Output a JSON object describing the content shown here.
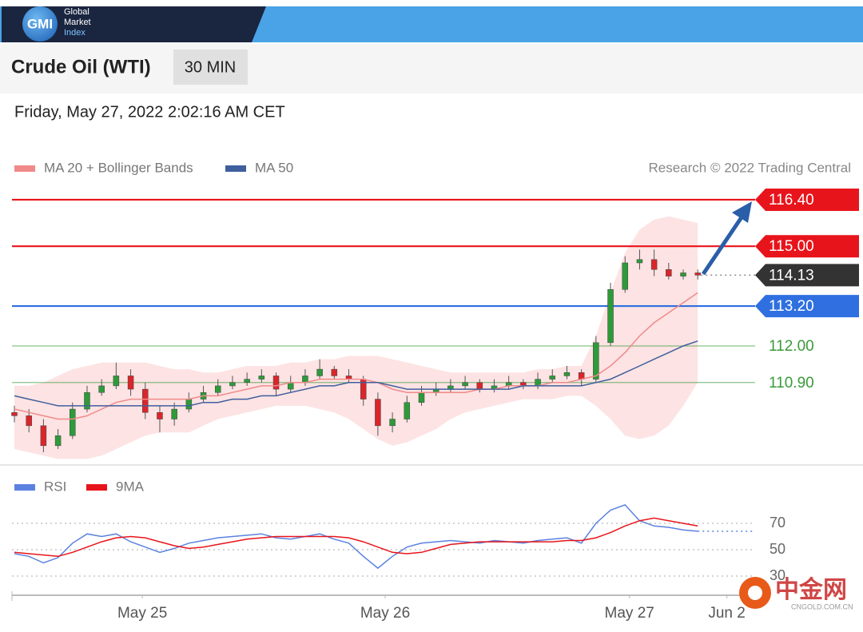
{
  "header": {
    "logo": "GMI",
    "brand": [
      "Global",
      "Market",
      "Index"
    ]
  },
  "instrument": "Crude Oil (WTI)",
  "interval": "30 MIN",
  "timestamp": "Friday, May 27, 2022 2:02:16 AM CET",
  "watermark": {
    "name": "中金网",
    "url": "CNGOLD.COM.CN"
  },
  "chart_data": [
    {
      "type": "candlestick",
      "credit": "Research © 2022 Trading Central",
      "up_color": "#2e9a3a",
      "down_color": "#d9262b",
      "band_color": "#fde3e3",
      "xlim": [
        0,
        51
      ],
      "ylim": [
        108.5,
        117
      ],
      "open": [
        110.0,
        109.9,
        109.6,
        109.0,
        109.3,
        110.1,
        110.6,
        110.8,
        111.1,
        110.7,
        110.0,
        109.8,
        110.1,
        110.4,
        110.6,
        110.8,
        110.9,
        111.0,
        111.1,
        110.7,
        110.9,
        111.1,
        111.3,
        111.1,
        111.0,
        110.4,
        109.6,
        109.8,
        110.3,
        110.6,
        110.7,
        110.8,
        110.9,
        110.7,
        110.8,
        110.9,
        110.8,
        111.0,
        111.1,
        111.2,
        111.0,
        112.1,
        113.7,
        114.5,
        114.6,
        114.3,
        114.1,
        114.2
      ],
      "high": [
        110.2,
        110.1,
        109.8,
        109.5,
        110.3,
        110.8,
        111.0,
        111.5,
        111.3,
        110.9,
        110.2,
        110.3,
        110.6,
        110.8,
        111.0,
        111.1,
        111.2,
        111.3,
        111.2,
        111.1,
        111.3,
        111.6,
        111.4,
        111.3,
        111.1,
        110.6,
        110.0,
        110.5,
        110.8,
        110.9,
        111.0,
        111.1,
        111.0,
        111.0,
        111.1,
        111.0,
        111.2,
        111.3,
        111.4,
        111.3,
        112.3,
        113.9,
        114.7,
        114.9,
        114.9,
        114.5,
        114.3,
        114.3
      ],
      "low": [
        109.7,
        109.4,
        108.8,
        108.9,
        109.2,
        110.0,
        110.5,
        110.7,
        110.5,
        109.8,
        109.4,
        109.6,
        110.0,
        110.3,
        110.5,
        110.7,
        110.8,
        110.9,
        110.5,
        110.6,
        110.8,
        111.0,
        111.0,
        110.9,
        110.2,
        109.3,
        109.4,
        109.7,
        110.2,
        110.5,
        110.6,
        110.7,
        110.6,
        110.6,
        110.7,
        110.7,
        110.7,
        110.9,
        111.0,
        110.8,
        110.9,
        112.0,
        113.6,
        114.3,
        114.1,
        114.0,
        114.0,
        114.0
      ],
      "close": [
        109.9,
        109.6,
        109.0,
        109.3,
        110.1,
        110.6,
        110.8,
        111.1,
        110.7,
        110.0,
        109.8,
        110.1,
        110.4,
        110.6,
        110.8,
        110.9,
        111.0,
        111.1,
        110.7,
        110.9,
        111.1,
        111.3,
        111.1,
        111.0,
        110.4,
        109.6,
        109.8,
        110.3,
        110.6,
        110.7,
        110.8,
        110.9,
        110.7,
        110.8,
        110.9,
        110.8,
        111.0,
        111.1,
        111.2,
        111.0,
        112.1,
        113.7,
        114.5,
        114.6,
        114.3,
        114.1,
        114.2,
        114.13
      ],
      "series": [
        {
          "name": "MA 20 + Bollinger Bands",
          "color": "#f08a8a",
          "values": [
            110.1,
            110.0,
            109.9,
            109.8,
            109.8,
            109.9,
            110.1,
            110.3,
            110.4,
            110.4,
            110.4,
            110.4,
            110.4,
            110.5,
            110.5,
            110.6,
            110.7,
            110.8,
            110.8,
            110.9,
            110.9,
            111.0,
            111.0,
            111.0,
            111.0,
            110.9,
            110.7,
            110.6,
            110.6,
            110.6,
            110.6,
            110.6,
            110.7,
            110.7,
            110.8,
            110.8,
            110.8,
            110.9,
            110.9,
            111.0,
            111.1,
            111.4,
            111.8,
            112.3,
            112.7,
            113.0,
            113.3,
            113.6
          ],
          "upper": [
            110.8,
            110.8,
            110.9,
            111.1,
            111.3,
            111.4,
            111.5,
            111.5,
            111.5,
            111.5,
            111.4,
            111.3,
            111.3,
            111.2,
            111.2,
            111.3,
            111.4,
            111.4,
            111.4,
            111.5,
            111.5,
            111.6,
            111.6,
            111.7,
            111.7,
            111.7,
            111.6,
            111.5,
            111.4,
            111.3,
            111.2,
            111.2,
            111.2,
            111.2,
            111.2,
            111.2,
            111.3,
            111.3,
            111.4,
            111.4,
            112.3,
            113.6,
            114.8,
            115.5,
            115.8,
            115.9,
            115.8,
            115.7
          ],
          "lower": [
            108.9,
            108.8,
            108.7,
            108.6,
            108.6,
            108.6,
            108.7,
            108.9,
            109.1,
            109.3,
            109.4,
            109.4,
            109.4,
            109.6,
            109.8,
            109.9,
            110.0,
            110.1,
            110.2,
            110.2,
            110.2,
            110.1,
            110.0,
            109.8,
            109.5,
            109.2,
            109.0,
            109.1,
            109.3,
            109.5,
            109.8,
            110.0,
            110.1,
            110.2,
            110.3,
            110.4,
            110.4,
            110.4,
            110.5,
            110.5,
            110.2,
            109.8,
            109.3,
            109.2,
            109.3,
            109.6,
            110.2,
            110.9
          ]
        },
        {
          "name": "MA 50",
          "color": "#3f5f9e",
          "values": [
            110.5,
            110.4,
            110.3,
            110.2,
            110.2,
            110.2,
            110.2,
            110.2,
            110.2,
            110.2,
            110.2,
            110.2,
            110.2,
            110.3,
            110.3,
            110.4,
            110.4,
            110.5,
            110.5,
            110.6,
            110.7,
            110.8,
            110.8,
            110.9,
            110.9,
            110.9,
            110.8,
            110.7,
            110.7,
            110.7,
            110.7,
            110.7,
            110.7,
            110.7,
            110.7,
            110.8,
            110.8,
            110.8,
            110.8,
            110.8,
            110.9,
            111.0,
            111.2,
            111.4,
            111.6,
            111.8,
            112.0,
            112.15
          ]
        }
      ],
      "levels": [
        {
          "value": 116.4,
          "label": "116.40",
          "color": "#e8141b",
          "style": "tag",
          "line": "solid"
        },
        {
          "value": 115.0,
          "label": "115.00",
          "color": "#e8141b",
          "style": "tag",
          "line": "solid"
        },
        {
          "value": 114.13,
          "label": "114.13",
          "color": "#333333",
          "style": "tag",
          "line": "dotted"
        },
        {
          "value": 113.2,
          "label": "113.20",
          "color": "#2f6fe0",
          "style": "tag",
          "line": "solid"
        },
        {
          "value": 112.0,
          "label": "112.00",
          "color": "#3a9a3a",
          "style": "plain",
          "line": "solid"
        },
        {
          "value": 110.9,
          "label": "110.90",
          "color": "#3a9a3a",
          "style": "plain",
          "line": "solid"
        }
      ]
    },
    {
      "type": "line",
      "xlim": [
        0,
        51
      ],
      "ylim": [
        20,
        90
      ],
      "yticks": [
        30,
        50,
        70
      ],
      "xticks": [
        {
          "value": 8.8,
          "label": "May 25"
        },
        {
          "value": 25.5,
          "label": "May 26"
        },
        {
          "value": 42.3,
          "label": "May 27"
        },
        {
          "value": 49,
          "label": "Jun 2"
        }
      ],
      "series": [
        {
          "name": "RSI",
          "color": "#5b82e0",
          "values": [
            47,
            45,
            40,
            44,
            55,
            62,
            60,
            62,
            56,
            52,
            48,
            51,
            55,
            57,
            59,
            60,
            61,
            62,
            59,
            58,
            60,
            62,
            58,
            55,
            45,
            36,
            45,
            52,
            55,
            56,
            57,
            56,
            55,
            57,
            56,
            55,
            57,
            58,
            59,
            55,
            70,
            80,
            84,
            72,
            68,
            67,
            65,
            64
          ]
        },
        {
          "name": "9MA",
          "color": "#e8141b",
          "values": [
            48,
            47,
            46,
            45,
            48,
            52,
            56,
            59,
            60,
            59,
            56,
            53,
            51,
            52,
            54,
            56,
            58,
            59,
            60,
            60,
            60,
            60,
            60,
            59,
            56,
            52,
            48,
            47,
            48,
            51,
            54,
            55,
            56,
            56,
            56,
            56,
            56,
            56,
            57,
            57,
            59,
            63,
            68,
            72,
            74,
            72,
            70,
            68
          ]
        }
      ]
    }
  ]
}
